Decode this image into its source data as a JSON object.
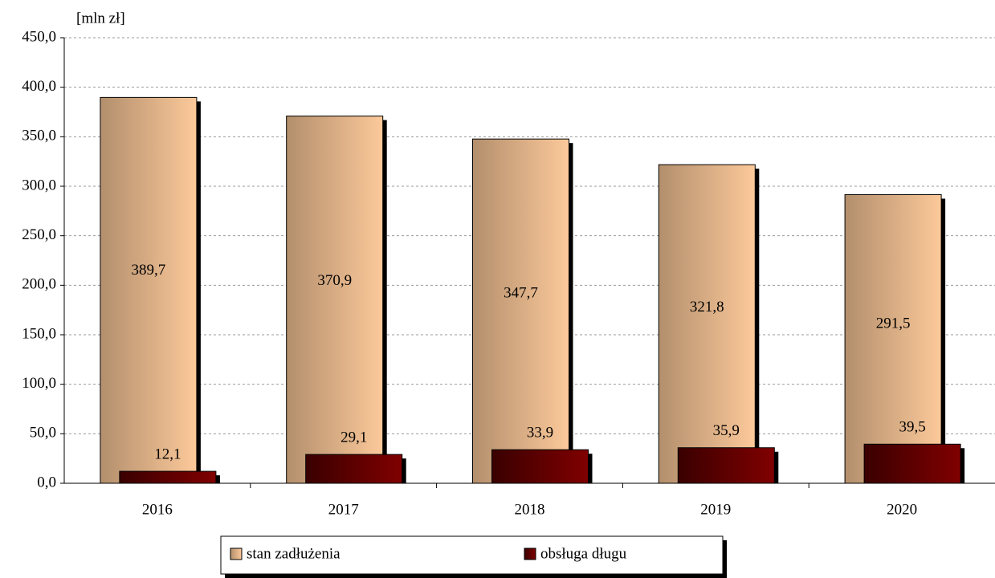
{
  "chart_data": {
    "type": "bar",
    "y_label": "[mln zł]",
    "categories": [
      "2016",
      "2017",
      "2018",
      "2019",
      "2020"
    ],
    "series": [
      {
        "name": "stan zadłużenia",
        "color": "#fcc99a",
        "values": [
          389.7,
          370.9,
          347.7,
          321.8,
          291.5
        ],
        "value_labels": [
          "389,7",
          "370,9",
          "347,7",
          "321,8",
          "291,5"
        ]
      },
      {
        "name": "obsługa długu",
        "color": "#800000",
        "values": [
          12.1,
          29.1,
          33.9,
          35.9,
          39.5
        ],
        "value_labels": [
          "12,1",
          "29,1",
          "33,9",
          "35,9",
          "39,5"
        ]
      }
    ],
    "ylim": [
      0,
      450
    ],
    "yticks": [
      {
        "value": 0,
        "label": "0,0"
      },
      {
        "value": 50,
        "label": "50,0"
      },
      {
        "value": 100,
        "label": "100,0"
      },
      {
        "value": 150,
        "label": "150,0"
      },
      {
        "value": 200,
        "label": "200,0"
      },
      {
        "value": 250,
        "label": "250,0"
      },
      {
        "value": 300,
        "label": "300,0"
      },
      {
        "value": 350,
        "label": "350,0"
      },
      {
        "value": 400,
        "label": "400,0"
      },
      {
        "value": 450,
        "label": "450,0"
      }
    ],
    "grid": true,
    "legend": "bottom"
  }
}
